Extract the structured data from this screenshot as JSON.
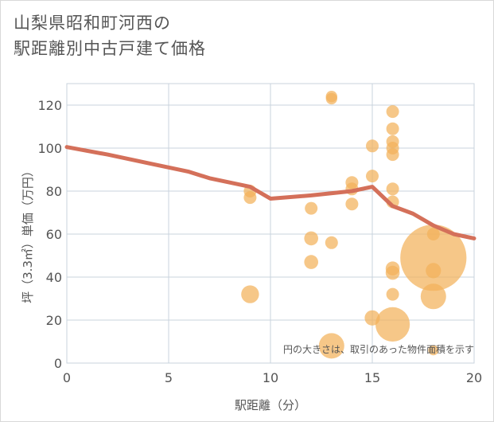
{
  "title": {
    "line1": "山梨県昭和町河西の",
    "line2": "駅距離別中古戸建て価格"
  },
  "chart_data": {
    "type": "scatter",
    "title": "山梨県昭和町河西の駅距離別中古戸建て価格",
    "xlabel": "駅距離（分）",
    "ylabel": "坪（3.3㎡）単価（万円）",
    "xlim": [
      0,
      20
    ],
    "ylim": [
      0,
      130
    ],
    "x_ticks": [
      0,
      5,
      10,
      15,
      20
    ],
    "y_ticks": [
      0,
      20,
      40,
      60,
      80,
      100,
      120
    ],
    "grid": true,
    "annotation": "円の大きさは、取引のあった物件面積を示す",
    "colors": {
      "bubble": "#f2b25a",
      "line": "#d4705a",
      "grid": "#c9d3de"
    },
    "bubbles": [
      {
        "x": 9,
        "y": 80,
        "size": 1
      },
      {
        "x": 9,
        "y": 77,
        "size": 1
      },
      {
        "x": 9,
        "y": 32,
        "size": 1.4
      },
      {
        "x": 12,
        "y": 72,
        "size": 1
      },
      {
        "x": 12,
        "y": 58,
        "size": 1.1
      },
      {
        "x": 12,
        "y": 47,
        "size": 1.1
      },
      {
        "x": 13,
        "y": 124,
        "size": 0.9
      },
      {
        "x": 13,
        "y": 123,
        "size": 0.9
      },
      {
        "x": 13,
        "y": 56,
        "size": 1
      },
      {
        "x": 13,
        "y": 8,
        "size": 2
      },
      {
        "x": 14,
        "y": 84,
        "size": 1
      },
      {
        "x": 14,
        "y": 81,
        "size": 1
      },
      {
        "x": 14,
        "y": 74,
        "size": 1
      },
      {
        "x": 15,
        "y": 101,
        "size": 1
      },
      {
        "x": 15,
        "y": 87,
        "size": 1
      },
      {
        "x": 15,
        "y": 21,
        "size": 1.2
      },
      {
        "x": 16,
        "y": 117,
        "size": 1
      },
      {
        "x": 16,
        "y": 109,
        "size": 1
      },
      {
        "x": 16,
        "y": 103,
        "size": 1
      },
      {
        "x": 16,
        "y": 100,
        "size": 1
      },
      {
        "x": 16,
        "y": 97,
        "size": 1
      },
      {
        "x": 16,
        "y": 81,
        "size": 1
      },
      {
        "x": 16,
        "y": 75,
        "size": 1
      },
      {
        "x": 16,
        "y": 44,
        "size": 1.1
      },
      {
        "x": 16,
        "y": 42,
        "size": 1.1
      },
      {
        "x": 16,
        "y": 32,
        "size": 1
      },
      {
        "x": 16,
        "y": 18,
        "size": 2.7
      },
      {
        "x": 18,
        "y": 60,
        "size": 1
      },
      {
        "x": 18,
        "y": 49,
        "size": 5.2
      },
      {
        "x": 18,
        "y": 43,
        "size": 1.2
      },
      {
        "x": 18,
        "y": 31,
        "size": 2
      },
      {
        "x": 18,
        "y": 6,
        "size": 0.8
      }
    ],
    "series": [
      {
        "x": [
          0,
          2,
          4,
          6,
          7,
          9,
          10,
          12,
          14,
          15,
          16,
          17,
          18,
          19,
          20
        ],
        "y": [
          100.5,
          97,
          93,
          89,
          86,
          82,
          76.5,
          78,
          80,
          82,
          73,
          69.5,
          64,
          60,
          58
        ]
      }
    ]
  }
}
